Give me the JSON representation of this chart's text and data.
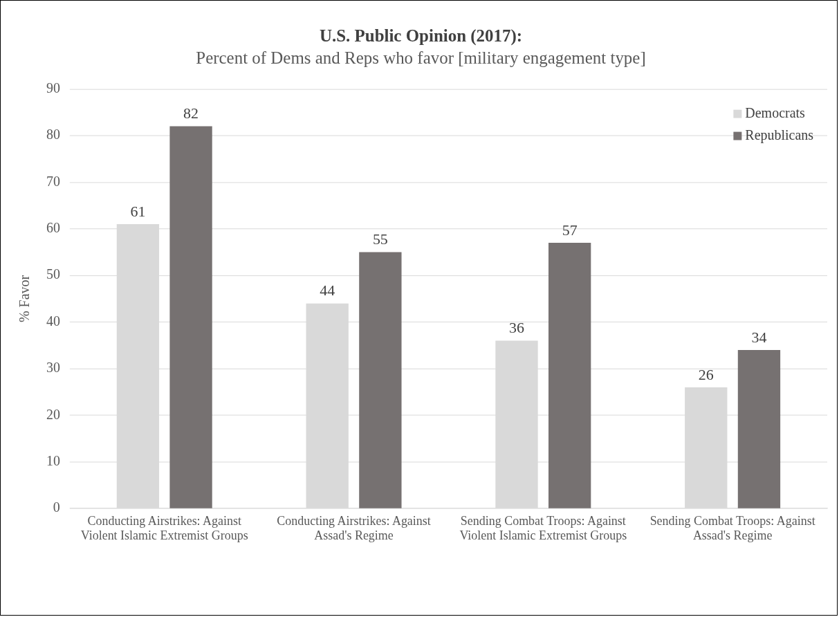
{
  "chart_data": {
    "type": "bar",
    "title": "U.S. Public Opinion (2017):",
    "subtitle": "Percent of Dems and Reps who favor [military engagement type]",
    "ylabel": "% Favor",
    "categories": [
      "Conducting Airstrikes: Against Violent Islamic Extremist Groups",
      "Conducting Airstrikes: Against Assad's Regime",
      "Sending Combat Troops: Against Violent Islamic Extremist Groups",
      "Sending Combat Troops: Against Assad's Regime"
    ],
    "series": [
      {
        "name": "Democrats",
        "color": "#d9d9d9",
        "values": [
          61,
          44,
          36,
          26
        ]
      },
      {
        "name": "Republicans",
        "color": "#767171",
        "values": [
          82,
          55,
          57,
          34
        ]
      }
    ],
    "ylim": [
      0,
      90
    ],
    "yticks": [
      0,
      10,
      20,
      30,
      40,
      50,
      60,
      70,
      80,
      90
    ],
    "grid": "y",
    "legend": "top right",
    "data_labels": true
  }
}
